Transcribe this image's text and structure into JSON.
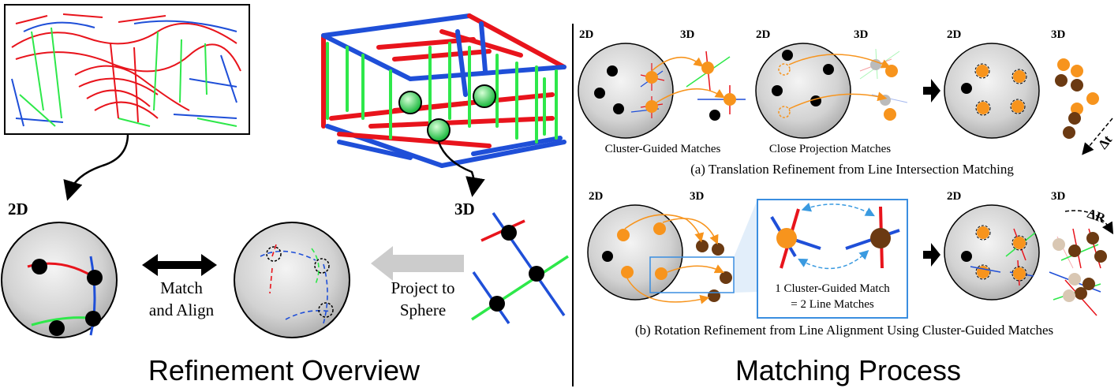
{
  "left": {
    "label_2d": "2D",
    "label_3d": "3D",
    "match_align_line1": "Match",
    "match_align_line2": "and Align",
    "project_line1": "Project to",
    "project_line2": "Sphere",
    "title": "Refinement Overview"
  },
  "right": {
    "title": "Matching Process",
    "panel_a": {
      "label_2d_1": "2D",
      "label_3d_1": "3D",
      "label_2d_2": "2D",
      "label_3d_2": "3D",
      "label_2d_3": "2D",
      "label_3d_3": "3D",
      "caption_cluster": "Cluster-Guided Matches",
      "caption_close": "Close Projection Matches",
      "delta": "Δt",
      "caption": "(a) Translation Refinement from Line Intersection Matching"
    },
    "panel_b": {
      "label_2d_1": "2D",
      "label_3d_1": "3D",
      "label_2d_2": "2D",
      "label_3d_2": "3D",
      "zoom_line1": "1 Cluster-Guided Match",
      "zoom_line2": "= 2 Line Matches",
      "delta": "ΔR",
      "caption": "(b) Rotation Refinement from Line Alignment Using Cluster-Guided Matches"
    }
  },
  "colors": {
    "red": "#e8141c",
    "blue": "#1f4fd8",
    "green": "#2ee84a",
    "orange": "#f7941d",
    "brown": "#6b3a12"
  }
}
